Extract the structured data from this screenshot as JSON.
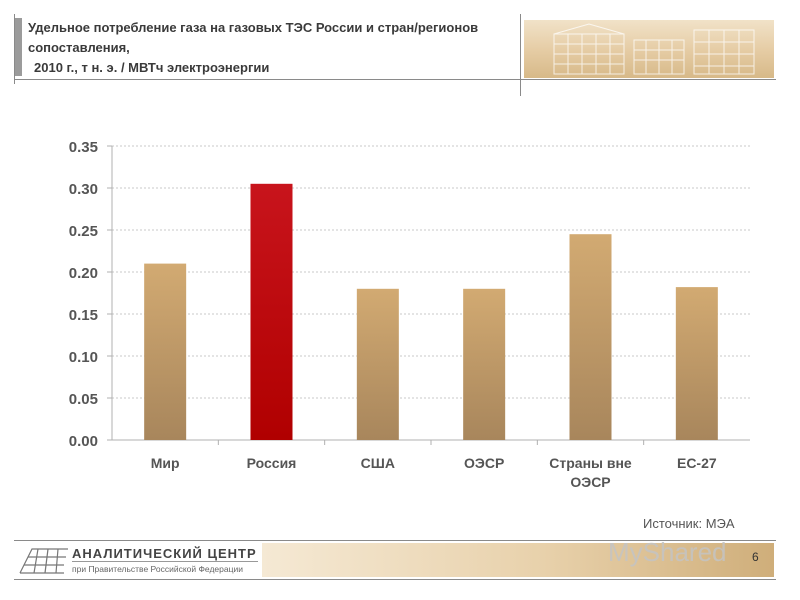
{
  "header": {
    "title_line1": "Удельное потребление газа на газовых ТЭС России и стран/регионов",
    "title_line2": "сопоставления,",
    "title_line3": "2010 г., т н. э. / МВТч электроэнергии"
  },
  "chart_data": {
    "type": "bar",
    "title": "",
    "xlabel": "",
    "ylabel": "",
    "categories": [
      "Мир",
      "Россия",
      "США",
      "ОЭСР",
      "Страны вне ОЭСР",
      "ЕС-27"
    ],
    "category_lines": [
      [
        "Мир"
      ],
      [
        "Россия"
      ],
      [
        "США"
      ],
      [
        "ОЭСР"
      ],
      [
        "Страны вне",
        "ОЭСР"
      ],
      [
        "ЕС-27"
      ]
    ],
    "values": [
      0.21,
      0.305,
      0.18,
      0.18,
      0.245,
      0.182
    ],
    "ylim": [
      0,
      0.35
    ],
    "yticks": [
      "0.00",
      "0.05",
      "0.10",
      "0.15",
      "0.20",
      "0.25",
      "0.30",
      "0.35"
    ],
    "grid": true,
    "legend": "none",
    "highlight_index": 1,
    "colors": {
      "bar": "#d2aa72",
      "bar_dark": "#a8865c",
      "highlight": "#c8141c",
      "highlight_dark": "#b00000",
      "grid": "#c8c8c8",
      "axis": "#b0b0b0",
      "label": "#555555"
    }
  },
  "source": "Источник: МЭА",
  "footer": {
    "logo_icon": "building-logo-icon",
    "org_name": "АНАЛИТИЧЕСКИЙ ЦЕНТР",
    "org_sub": "при Правительстве Российской Федерации",
    "watermark": "MyShared",
    "page_number": "6"
  }
}
